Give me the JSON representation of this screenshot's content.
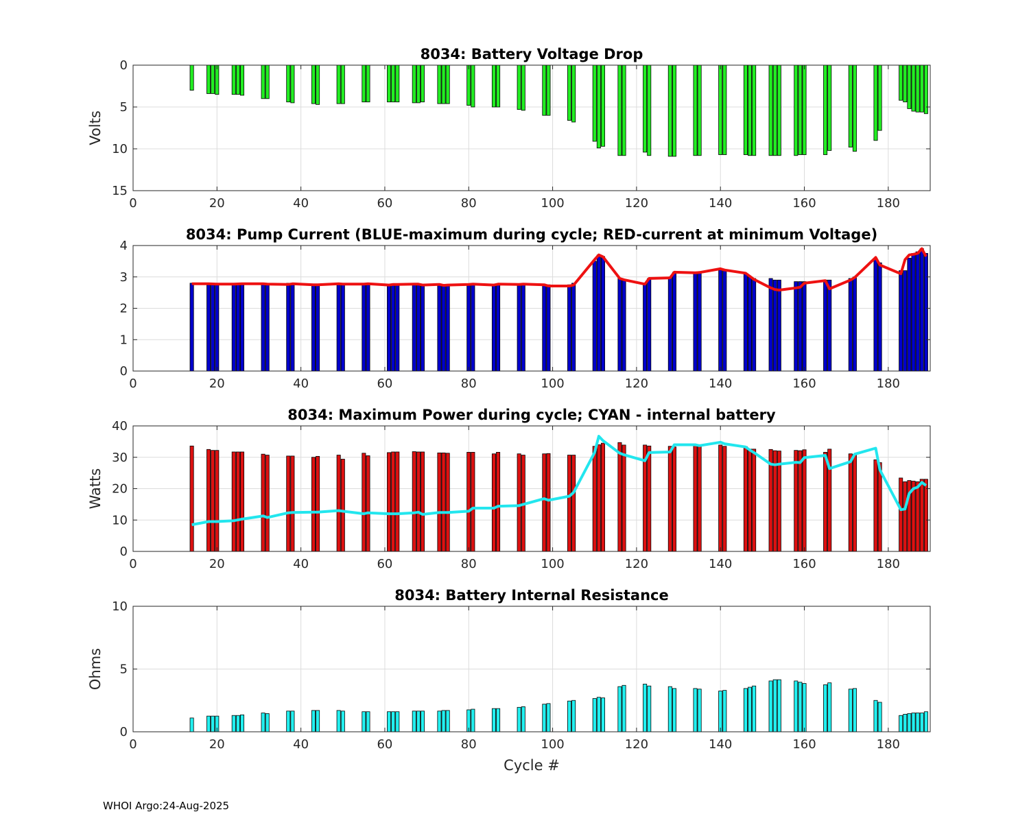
{
  "footer": "WHOI Argo:24-Aug-2025",
  "chart_data": [
    {
      "type": "bar",
      "title": "8034: Battery Voltage Drop",
      "ylabel": "Volts",
      "xlabel": "",
      "xlim": [
        0,
        190
      ],
      "ylim": [
        0,
        15
      ],
      "y_reversed": true,
      "xticks": [
        0,
        20,
        40,
        60,
        80,
        100,
        120,
        140,
        160,
        180
      ],
      "yticks": [
        0,
        5,
        10,
        15
      ],
      "bar_color": "#22ee22",
      "x": [
        14,
        18,
        19,
        20,
        24,
        25,
        26,
        31,
        32,
        37,
        38,
        43,
        44,
        49,
        50,
        55,
        56,
        61,
        62,
        63,
        67,
        68,
        69,
        73,
        74,
        75,
        80,
        81,
        86,
        87,
        92,
        93,
        98,
        99,
        104,
        105,
        110,
        111,
        112,
        116,
        117,
        122,
        123,
        128,
        129,
        134,
        135,
        140,
        141,
        146,
        147,
        148,
        152,
        153,
        154,
        158,
        159,
        160,
        165,
        166,
        171,
        172,
        177,
        178,
        183,
        184,
        185,
        186,
        187,
        188,
        189
      ],
      "values": [
        3,
        3.4,
        3.4,
        3.5,
        3.5,
        3.5,
        3.6,
        4,
        4,
        4.4,
        4.5,
        4.6,
        4.7,
        4.6,
        4.6,
        4.4,
        4.4,
        4.4,
        4.4,
        4.4,
        4.5,
        4.5,
        4.4,
        4.6,
        4.6,
        4.6,
        4.8,
        5,
        5,
        5,
        5.3,
        5.4,
        6,
        6,
        6.6,
        6.8,
        9.1,
        9.9,
        9.7,
        10.8,
        10.8,
        10.4,
        10.8,
        10.9,
        10.9,
        10.8,
        10.8,
        10.7,
        10.7,
        10.7,
        10.8,
        10.8,
        10.8,
        10.8,
        10.8,
        10.8,
        10.7,
        10.7,
        10.7,
        10.2,
        9.8,
        10.3,
        9,
        7.8,
        4.2,
        4.4,
        5.2,
        5.5,
        5.6,
        5.6,
        5.8
      ]
    },
    {
      "type": "bar",
      "title": "8034: Pump Current (BLUE-maximum during cycle; RED-current at minimum Voltage)",
      "ylabel": "",
      "xlabel": "",
      "xlim": [
        0,
        190
      ],
      "ylim": [
        0,
        4
      ],
      "xticks": [
        0,
        20,
        40,
        60,
        80,
        100,
        120,
        140,
        160,
        180
      ],
      "yticks": [
        0,
        1,
        2,
        3,
        4
      ],
      "bar_color": "#0000cc",
      "line_color": "#ee1111",
      "x": [
        14,
        18,
        19,
        20,
        24,
        25,
        26,
        31,
        32,
        37,
        38,
        43,
        44,
        49,
        50,
        55,
        56,
        61,
        62,
        63,
        67,
        68,
        69,
        73,
        74,
        75,
        80,
        81,
        86,
        87,
        92,
        93,
        98,
        99,
        104,
        105,
        110,
        111,
        112,
        116,
        117,
        122,
        123,
        128,
        129,
        134,
        135,
        140,
        141,
        146,
        147,
        148,
        152,
        153,
        154,
        158,
        159,
        160,
        165,
        166,
        171,
        172,
        177,
        178,
        183,
        184,
        185,
        186,
        187,
        188,
        189
      ],
      "values": [
        2.8,
        2.75,
        2.75,
        2.75,
        2.75,
        2.75,
        2.8,
        2.8,
        2.75,
        2.8,
        2.75,
        2.75,
        2.75,
        2.8,
        2.75,
        2.8,
        2.75,
        2.75,
        2.75,
        2.75,
        2.75,
        2.75,
        2.75,
        2.75,
        2.75,
        2.75,
        2.75,
        2.8,
        2.75,
        2.75,
        2.75,
        2.75,
        2.75,
        2.75,
        2.75,
        2.8,
        3.5,
        3.7,
        3.65,
        2.95,
        2.9,
        2.8,
        2.95,
        3.0,
        3.15,
        3.15,
        3.15,
        3.25,
        3.2,
        3.1,
        3.0,
        2.95,
        2.95,
        2.9,
        2.9,
        2.85,
        2.85,
        2.85,
        2.9,
        2.9,
        2.95,
        3.0,
        3.55,
        3.45,
        3.2,
        3.2,
        3.6,
        3.75,
        3.8,
        3.9,
        3.75
      ],
      "line_x": [
        14,
        18,
        20,
        24,
        26,
        31,
        32,
        37,
        38,
        43,
        44,
        49,
        50,
        55,
        56,
        61,
        62,
        63,
        67,
        68,
        69,
        73,
        74,
        75,
        80,
        81,
        86,
        87,
        92,
        93,
        98,
        99,
        104,
        105,
        110,
        111,
        112,
        116,
        117,
        122,
        123,
        128,
        129,
        134,
        135,
        140,
        141,
        146,
        147,
        148,
        152,
        153,
        154,
        158,
        159,
        160,
        165,
        166,
        171,
        172,
        177,
        178,
        183,
        184,
        185,
        186,
        187,
        188,
        189
      ],
      "line_values": [
        2.78,
        2.78,
        2.77,
        2.77,
        2.78,
        2.78,
        2.77,
        2.76,
        2.78,
        2.75,
        2.75,
        2.78,
        2.77,
        2.77,
        2.78,
        2.74,
        2.76,
        2.76,
        2.77,
        2.77,
        2.74,
        2.76,
        2.73,
        2.74,
        2.76,
        2.77,
        2.74,
        2.77,
        2.76,
        2.77,
        2.75,
        2.71,
        2.71,
        2.74,
        3.55,
        3.7,
        3.64,
        2.95,
        2.91,
        2.77,
        2.95,
        2.97,
        3.15,
        3.13,
        3.14,
        3.26,
        3.22,
        3.12,
        3.02,
        2.92,
        2.65,
        2.6,
        2.58,
        2.65,
        2.67,
        2.8,
        2.88,
        2.62,
        2.9,
        2.98,
        3.62,
        3.38,
        3.1,
        3.55,
        3.7,
        3.72,
        3.75,
        3.9,
        3.65
      ]
    },
    {
      "type": "bar",
      "title": "8034: Maximum Power during cycle; CYAN - internal battery",
      "ylabel": "Watts",
      "xlabel": "",
      "xlim": [
        0,
        190
      ],
      "ylim": [
        0,
        40
      ],
      "xticks": [
        0,
        20,
        40,
        60,
        80,
        100,
        120,
        140,
        160,
        180
      ],
      "yticks": [
        0,
        10,
        20,
        30,
        40
      ],
      "bar_color": "#dd1111",
      "line_color": "#22e6ee",
      "x": [
        14,
        18,
        19,
        20,
        24,
        25,
        26,
        31,
        32,
        37,
        38,
        43,
        44,
        49,
        50,
        55,
        56,
        61,
        62,
        63,
        67,
        68,
        69,
        73,
        74,
        75,
        80,
        81,
        86,
        87,
        92,
        93,
        98,
        99,
        104,
        105,
        110,
        111,
        112,
        116,
        117,
        122,
        123,
        128,
        129,
        134,
        135,
        140,
        141,
        146,
        147,
        148,
        152,
        153,
        154,
        158,
        159,
        160,
        165,
        166,
        171,
        172,
        177,
        178,
        183,
        184,
        185,
        186,
        187,
        188,
        189
      ],
      "values": [
        33.6,
        32.5,
        32.2,
        32.2,
        31.7,
        31.7,
        31.7,
        31,
        30.7,
        30.4,
        30.4,
        30,
        30.3,
        30.7,
        29.4,
        31.3,
        30.5,
        31.5,
        31.7,
        31.7,
        31.8,
        31.7,
        31.7,
        31.4,
        31.4,
        31.3,
        31.6,
        31.6,
        31.1,
        31.6,
        31.1,
        30.7,
        31.1,
        31.2,
        30.7,
        30.7,
        33.5,
        34,
        34.5,
        34.7,
        33.9,
        33.9,
        33.6,
        33.5,
        33.3,
        33.8,
        33.6,
        33.9,
        33.5,
        33.4,
        32.6,
        32.6,
        32.5,
        32.1,
        32,
        32.2,
        32.1,
        32.4,
        31.6,
        32.6,
        31.1,
        30.9,
        29.2,
        28.3,
        23.4,
        22.2,
        22.6,
        22.4,
        22.2,
        23,
        23
      ],
      "line_x": [
        14,
        18,
        20,
        24,
        26,
        31,
        32,
        37,
        38,
        43,
        44,
        49,
        50,
        55,
        56,
        61,
        62,
        63,
        67,
        68,
        69,
        73,
        74,
        75,
        80,
        81,
        86,
        87,
        92,
        93,
        98,
        99,
        104,
        105,
        110,
        111,
        112,
        116,
        117,
        122,
        123,
        128,
        129,
        134,
        135,
        140,
        141,
        146,
        147,
        148,
        152,
        153,
        154,
        158,
        159,
        160,
        165,
        166,
        171,
        172,
        177,
        178,
        183,
        184,
        185,
        186,
        187,
        188,
        189
      ],
      "line_values": [
        8.5,
        9.5,
        9.5,
        9.8,
        10.3,
        11.3,
        10.8,
        12.3,
        12.4,
        12.5,
        12.5,
        13,
        12.8,
        12,
        12.3,
        12,
        12,
        12,
        12.3,
        12.5,
        11.8,
        12.4,
        12.4,
        12.4,
        12.8,
        13.8,
        13.8,
        14.4,
        14.6,
        15,
        16.8,
        16.3,
        17.6,
        18.8,
        31.5,
        36.7,
        35.3,
        31.3,
        30.8,
        28.9,
        31.5,
        31.7,
        34,
        34,
        33.7,
        34.8,
        34.3,
        33.3,
        32.3,
        31.5,
        27.8,
        27.6,
        27.8,
        28.4,
        28.3,
        29.9,
        30.6,
        26.4,
        28.6,
        31,
        32.9,
        26,
        13.3,
        13.5,
        18.5,
        20,
        20.5,
        22,
        21
      ]
    },
    {
      "type": "bar",
      "title": "8034: Battery Internal Resistance",
      "ylabel": "Ohms",
      "xlabel": "Cycle #",
      "xlim": [
        0,
        190
      ],
      "ylim": [
        0,
        10
      ],
      "xticks": [
        0,
        20,
        40,
        60,
        80,
        100,
        120,
        140,
        160,
        180
      ],
      "yticks": [
        0,
        5,
        10
      ],
      "bar_color": "#22f0f0",
      "x": [
        14,
        18,
        19,
        20,
        24,
        25,
        26,
        31,
        32,
        37,
        38,
        43,
        44,
        49,
        50,
        55,
        56,
        61,
        62,
        63,
        67,
        68,
        69,
        73,
        74,
        75,
        80,
        81,
        86,
        87,
        92,
        93,
        98,
        99,
        104,
        105,
        110,
        111,
        112,
        116,
        117,
        122,
        123,
        128,
        129,
        134,
        135,
        140,
        141,
        146,
        147,
        148,
        152,
        153,
        154,
        158,
        159,
        160,
        165,
        166,
        171,
        172,
        177,
        178,
        183,
        184,
        185,
        186,
        187,
        188,
        189
      ],
      "values": [
        1.1,
        1.25,
        1.25,
        1.25,
        1.3,
        1.3,
        1.35,
        1.5,
        1.45,
        1.65,
        1.65,
        1.7,
        1.7,
        1.7,
        1.65,
        1.6,
        1.6,
        1.6,
        1.6,
        1.6,
        1.65,
        1.65,
        1.65,
        1.65,
        1.7,
        1.7,
        1.75,
        1.8,
        1.85,
        1.85,
        1.95,
        2,
        2.2,
        2.25,
        2.45,
        2.5,
        2.65,
        2.75,
        2.7,
        3.6,
        3.7,
        3.8,
        3.65,
        3.6,
        3.45,
        3.45,
        3.4,
        3.25,
        3.3,
        3.45,
        3.55,
        3.65,
        4.05,
        4.15,
        4.15,
        4.05,
        3.95,
        3.85,
        3.75,
        3.9,
        3.4,
        3.45,
        2.5,
        2.35,
        1.3,
        1.4,
        1.45,
        1.5,
        1.5,
        1.5,
        1.6
      ]
    }
  ]
}
